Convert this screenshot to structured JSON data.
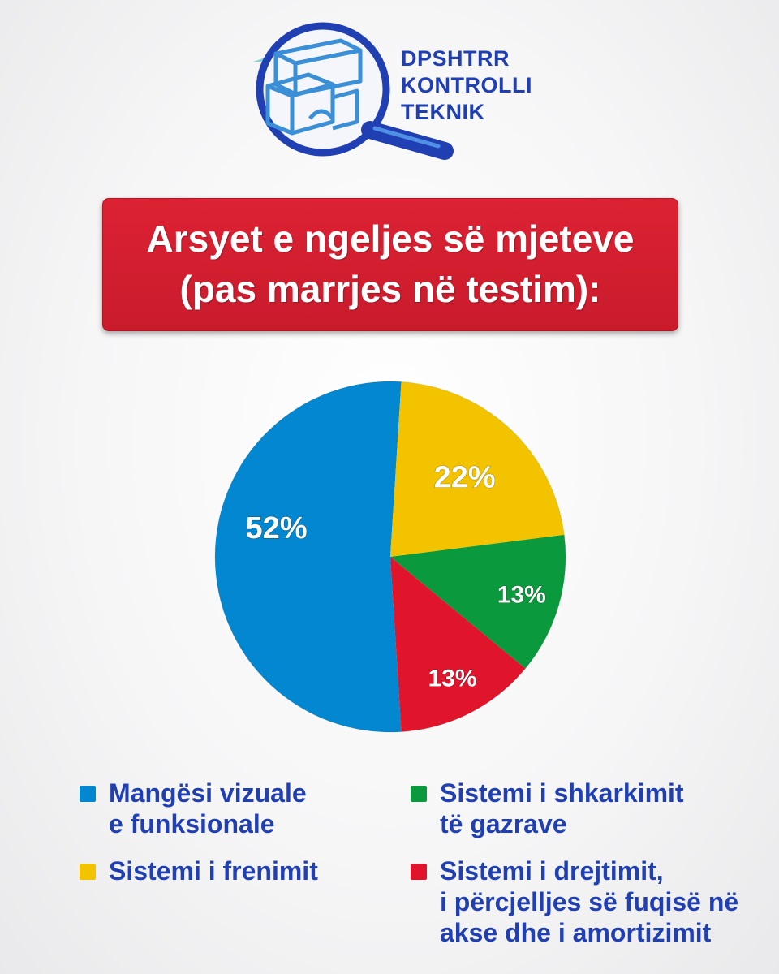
{
  "logo": {
    "lines": [
      "DPSHTRR",
      "KONTROLLI",
      "TEKNIK"
    ],
    "icon": "magnifier-with-building-blocks-icon"
  },
  "title": {
    "line1": "Arsyet e ngeljes së mjeteve",
    "line2": "(pas marrjes në testim):"
  },
  "colors": {
    "blue": "#0287d0",
    "yellow": "#f4c300",
    "green": "#0a9a3d",
    "red": "#e0142a",
    "brand_blue": "#1f3fb3",
    "banner_red": "#d21f2f"
  },
  "chart_data": {
    "type": "pie",
    "slices": [
      {
        "label": "Mangësi vizuale e funksionale",
        "value": 52,
        "display": "52%",
        "color": "#0287d0"
      },
      {
        "label": "Sistemi i frenimit",
        "value": 22,
        "display": "22%",
        "color": "#f4c300"
      },
      {
        "label": "Sistemi i shkarkimit të gazrave",
        "value": 13,
        "display": "13%",
        "color": "#0a9a3d"
      },
      {
        "label": "Sistemi i drejtimit, i përcjelljes së fuqisë në akse dhe i amortizimit",
        "value": 13,
        "display": "13%",
        "color": "#e0142a"
      }
    ]
  },
  "legend": {
    "items": [
      {
        "lines": [
          "Mangësi vizuale",
          "e funksionale"
        ],
        "color": "#0287d0"
      },
      {
        "lines": [
          "Sistemi i frenimit"
        ],
        "color": "#f4c300"
      },
      {
        "lines": [
          "Sistemi i shkarkimit",
          "të gazrave"
        ],
        "color": "#0a9a3d"
      },
      {
        "lines": [
          "Sistemi i drejtimit,",
          "i përcjelljes së fuqisë në",
          "akse dhe i amortizimit"
        ],
        "color": "#e0142a"
      }
    ]
  }
}
